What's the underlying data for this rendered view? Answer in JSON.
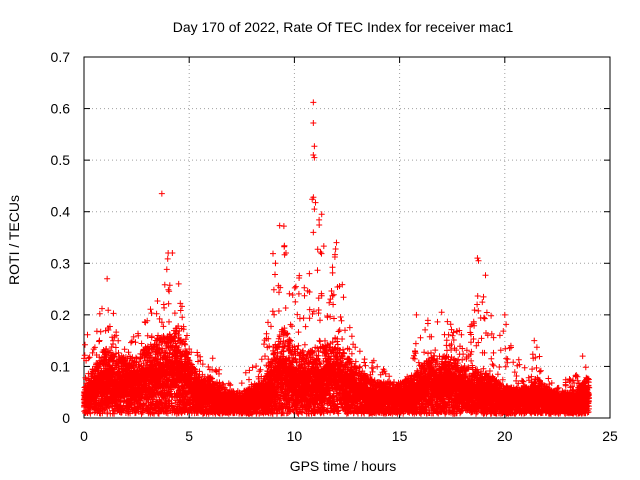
{
  "chart_data": {
    "type": "scatter",
    "title": "Day 170 of 2022, Rate Of TEC Index for receiver mac1",
    "xlabel": "GPS time / hours",
    "ylabel": "ROTI / TECUs",
    "xlim": [
      0,
      25
    ],
    "ylim": [
      0,
      0.7
    ],
    "xticks": [
      0,
      5,
      10,
      15,
      20,
      25
    ],
    "yticks": [
      0,
      0.1,
      0.2,
      0.3,
      0.4,
      0.5,
      0.6,
      0.7
    ],
    "grid": true,
    "marker": "plus",
    "color": "#ff0000",
    "n_points": 2880,
    "envelope": {
      "hours": [
        0,
        0.5,
        1,
        1.5,
        2,
        2.5,
        3,
        3.5,
        4,
        4.5,
        5,
        5.5,
        6,
        6.5,
        7,
        7.5,
        8,
        8.5,
        9,
        9.5,
        10,
        10.5,
        11,
        11.5,
        12,
        12.5,
        13,
        13.5,
        14,
        14.5,
        15,
        15.5,
        16,
        16.5,
        17,
        17.5,
        18,
        18.5,
        19,
        19.5,
        20,
        20.5,
        21,
        21.5,
        22,
        22.5,
        23,
        23.5,
        24
      ],
      "median": [
        0.03,
        0.05,
        0.07,
        0.06,
        0.06,
        0.06,
        0.07,
        0.08,
        0.08,
        0.09,
        0.06,
        0.04,
        0.04,
        0.03,
        0.025,
        0.025,
        0.03,
        0.035,
        0.07,
        0.09,
        0.07,
        0.06,
        0.07,
        0.07,
        0.08,
        0.06,
        0.05,
        0.04,
        0.035,
        0.035,
        0.035,
        0.04,
        0.05,
        0.06,
        0.06,
        0.06,
        0.05,
        0.05,
        0.045,
        0.04,
        0.03,
        0.03,
        0.03,
        0.04,
        0.03,
        0.025,
        0.025,
        0.03,
        0.04
      ],
      "upper": [
        0.2,
        0.16,
        0.27,
        0.19,
        0.13,
        0.17,
        0.2,
        0.24,
        0.32,
        0.26,
        0.15,
        0.12,
        0.13,
        0.09,
        0.07,
        0.08,
        0.1,
        0.12,
        0.37,
        0.37,
        0.3,
        0.27,
        0.61,
        0.28,
        0.34,
        0.2,
        0.16,
        0.13,
        0.1,
        0.09,
        0.08,
        0.1,
        0.18,
        0.2,
        0.2,
        0.18,
        0.17,
        0.2,
        0.31,
        0.15,
        0.2,
        0.12,
        0.1,
        0.15,
        0.08,
        0.06,
        0.08,
        0.09,
        0.13
      ]
    },
    "notable_points": [
      {
        "x": 3.7,
        "y": 0.435
      },
      {
        "x": 10.9,
        "y": 0.612
      },
      {
        "x": 10.9,
        "y": 0.572
      },
      {
        "x": 10.95,
        "y": 0.527
      },
      {
        "x": 10.9,
        "y": 0.51
      },
      {
        "x": 10.95,
        "y": 0.505
      },
      {
        "x": 10.95,
        "y": 0.405
      },
      {
        "x": 10.9,
        "y": 0.36
      },
      {
        "x": 9.3,
        "y": 0.373
      },
      {
        "x": 9.5,
        "y": 0.372
      },
      {
        "x": 9.6,
        "y": 0.32
      },
      {
        "x": 9.1,
        "y": 0.3
      },
      {
        "x": 4.0,
        "y": 0.32
      },
      {
        "x": 4.2,
        "y": 0.32
      },
      {
        "x": 4.5,
        "y": 0.26
      },
      {
        "x": 1.1,
        "y": 0.27
      },
      {
        "x": 12.0,
        "y": 0.34
      },
      {
        "x": 18.7,
        "y": 0.31
      },
      {
        "x": 18.75,
        "y": 0.305
      },
      {
        "x": 20.0,
        "y": 0.2
      },
      {
        "x": 15.8,
        "y": 0.2
      },
      {
        "x": 17.0,
        "y": 0.205
      },
      {
        "x": 21.4,
        "y": 0.15
      },
      {
        "x": 23.7,
        "y": 0.12
      }
    ]
  }
}
